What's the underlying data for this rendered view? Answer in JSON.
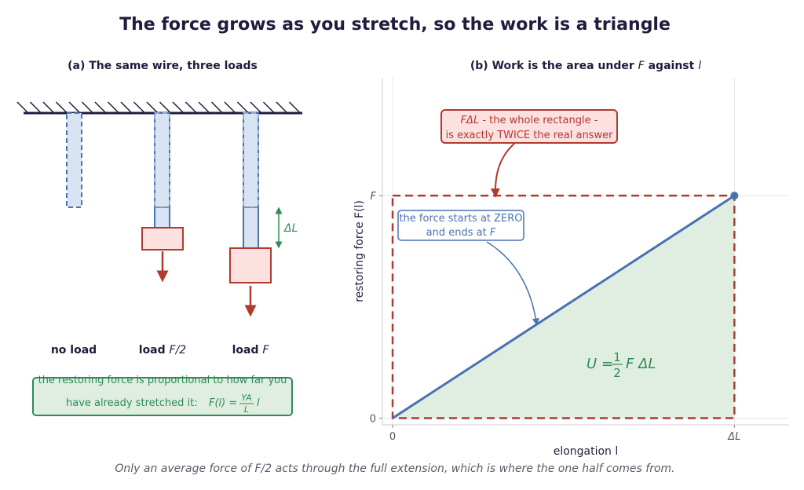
{
  "title": "The force grows as you stretch, so the work is a triangle",
  "caption": "Only an average force of F/2 acts through the full extension, which is where the one half comes from.",
  "colors": {
    "navy": "#1f1d3d",
    "wire_blue": "#4a72b0",
    "wire_fill": "#d8e3f3",
    "red": "#b03a2e",
    "red_fill": "#fde0e0",
    "green": "#2e8b57",
    "green_fill": "#dfeee1",
    "gray": "#888888"
  },
  "panel_a": {
    "title": "(a) The same wire, three loads",
    "wires": [
      {
        "label_bold": "no load",
        "label_var": ""
      },
      {
        "label_bold": "load ",
        "label_var": "F/2"
      },
      {
        "label_bold": "load ",
        "label_var": "F"
      }
    ],
    "delta_label": "ΔL",
    "note_line1": "the restoring force is proportional to how far you",
    "note_line2_text": "have already stretched it:",
    "note_formula_lhs": "F(l) =",
    "note_frac_num": "YA",
    "note_frac_den": "L",
    "note_formula_tail": "l"
  },
  "panel_b": {
    "title_prefix": "(b) Work is the area under",
    "title_var1": "F",
    "title_mid": "against",
    "title_var2": "l",
    "rect_note_line1_var": "FΔL",
    "rect_note_line1_text": "- the whole rectangle -",
    "rect_note_line2": "is exactly TWICE the real answer",
    "force_note_line1": "the force starts at ZERO",
    "force_note_line2_text": "and ends at",
    "force_note_line2_var": "F",
    "area_formula_lhs": "U =",
    "area_frac_num": "1",
    "area_frac_den": "2",
    "area_formula_tail": "F ΔL"
  },
  "chart_data": {
    "type": "line",
    "xlabel": "elongation  l",
    "ylabel": "restoring force  F(l)",
    "x_ticks": [
      "0",
      "ΔL"
    ],
    "y_ticks": [
      "0",
      "F"
    ],
    "series": [
      {
        "x": [
          0,
          1
        ],
        "y": [
          0,
          1
        ]
      }
    ],
    "xlim": [
      -0.03,
      1.16
    ],
    "ylim": [
      -0.03,
      1.53
    ],
    "grid": true
  }
}
